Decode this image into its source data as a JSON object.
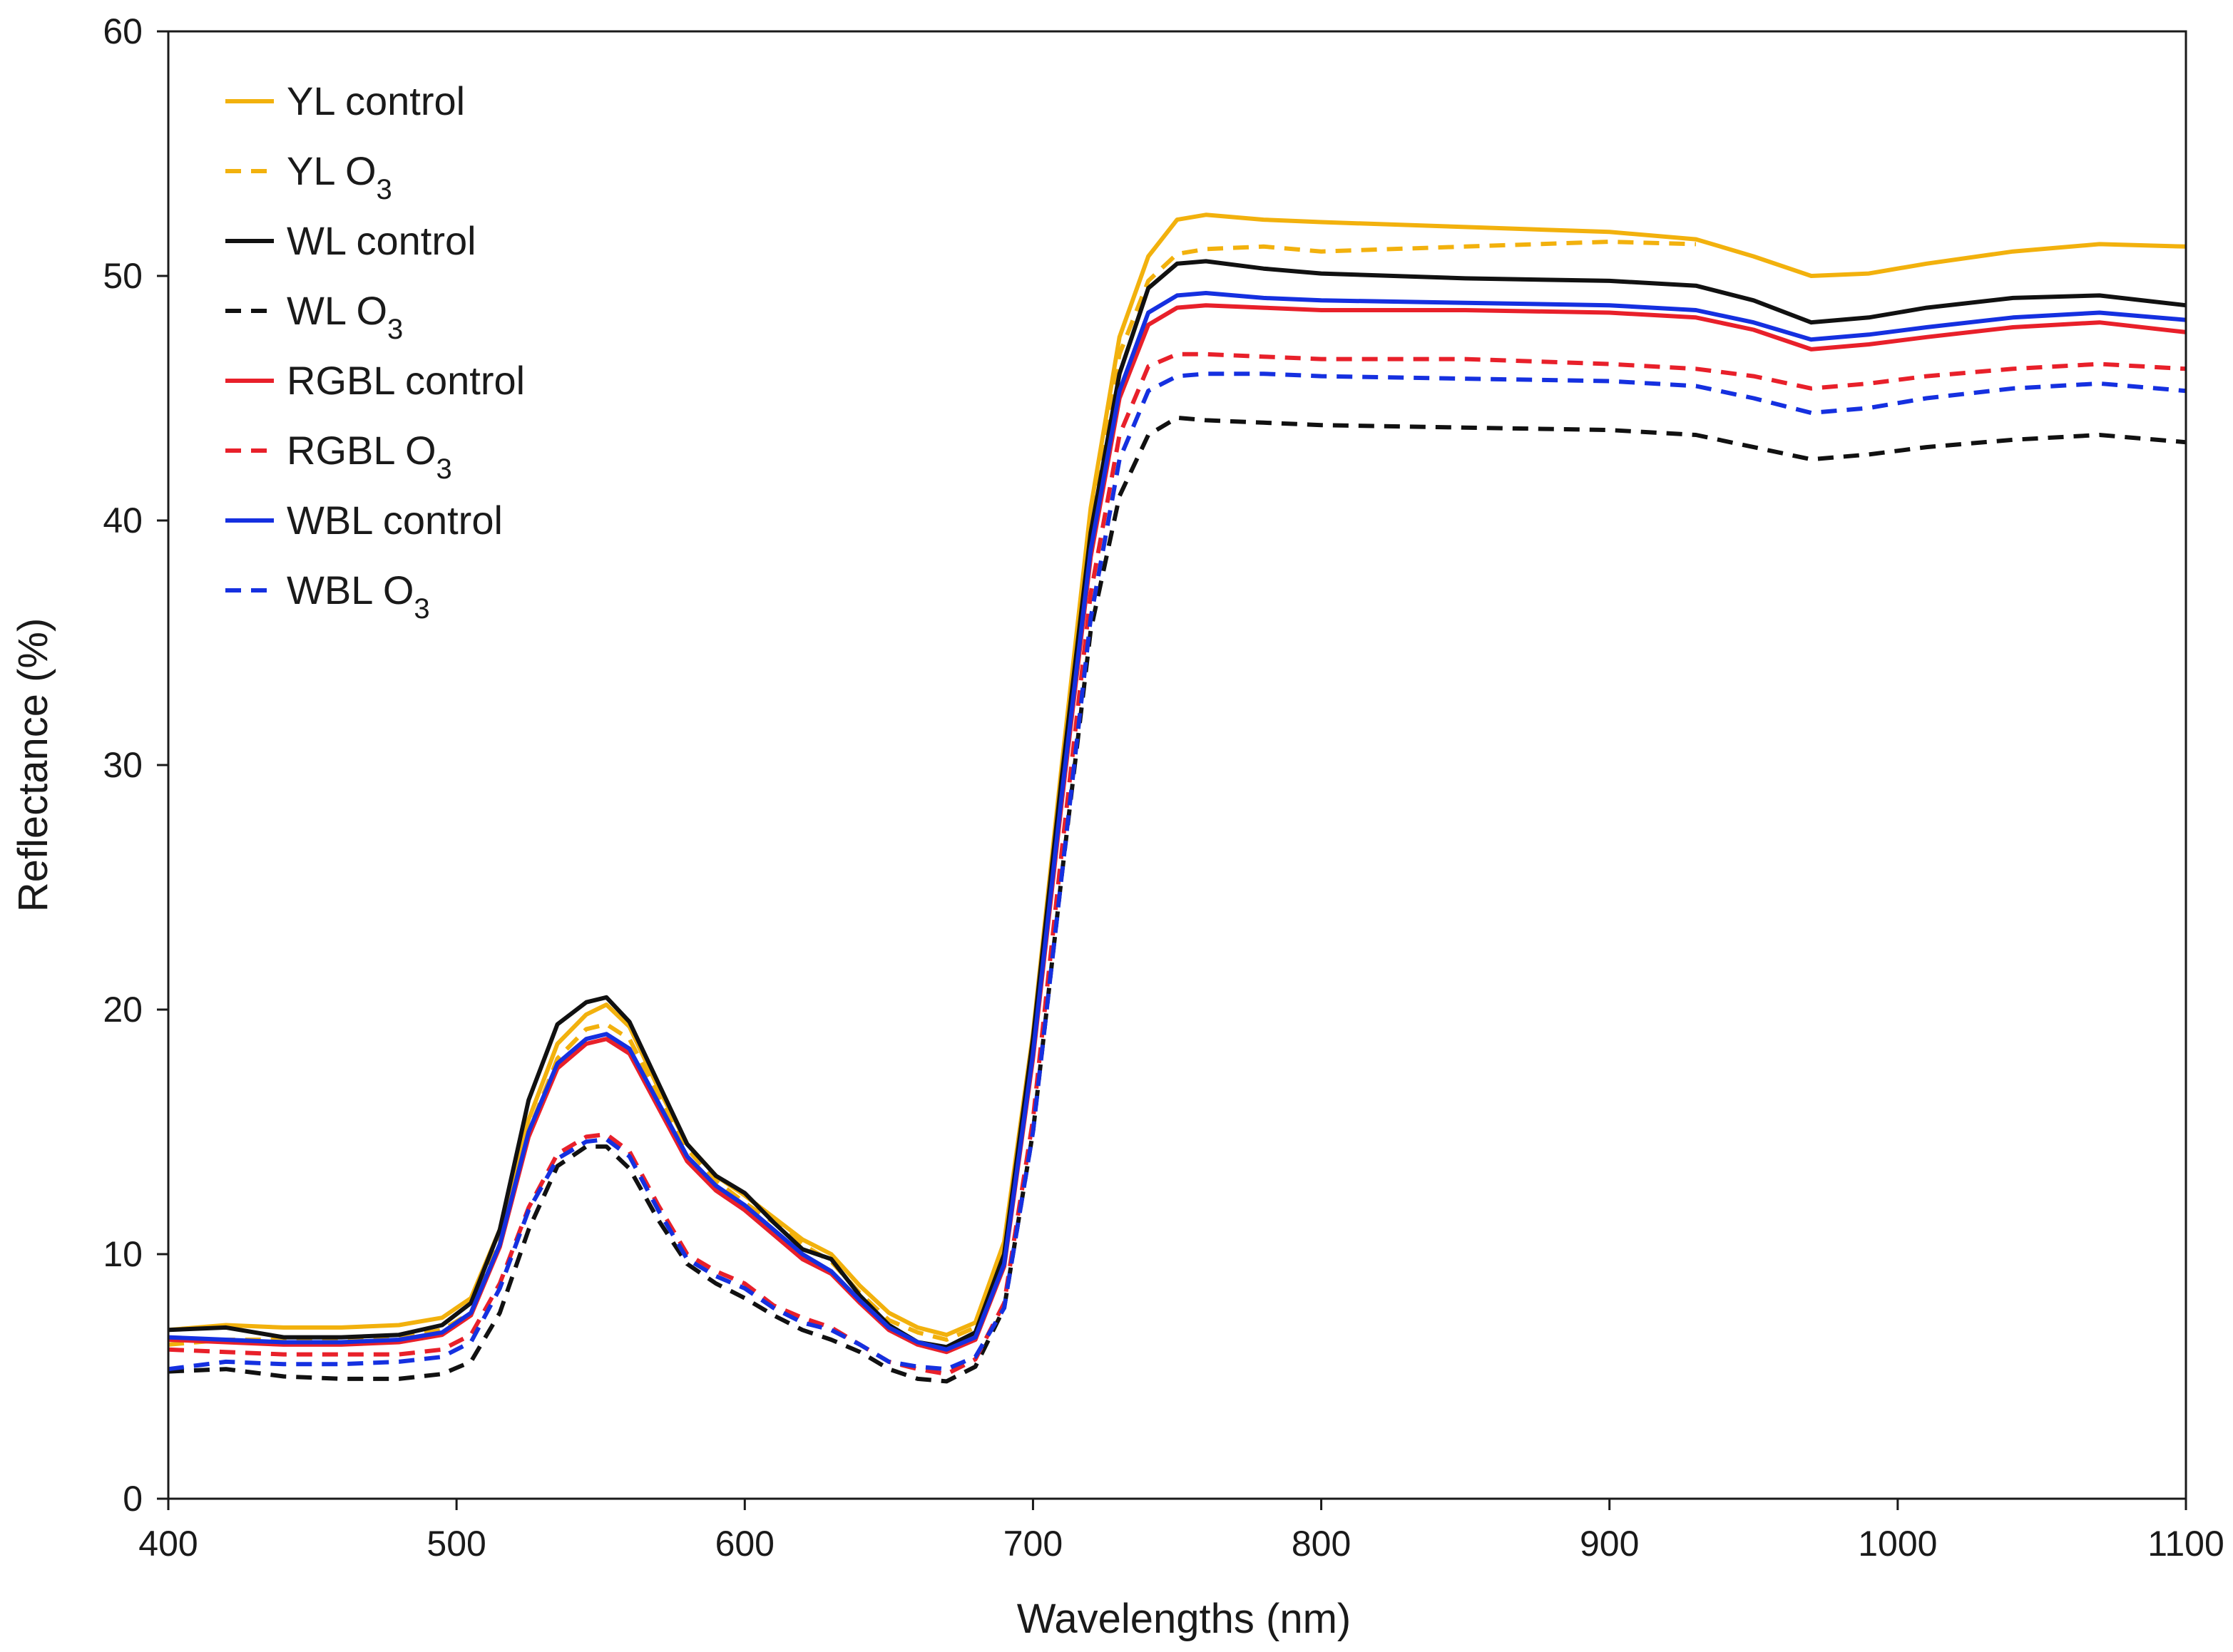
{
  "chart_data": {
    "type": "line",
    "title": "",
    "xlabel": "Wavelengths (nm)",
    "ylabel": "Reflectance (%)",
    "xlim": [
      400,
      1100
    ],
    "ylim": [
      0,
      60
    ],
    "xticks": [
      400,
      500,
      600,
      700,
      800,
      900,
      1000,
      1100
    ],
    "yticks": [
      0,
      10,
      20,
      30,
      40,
      50,
      60
    ],
    "xtick_labels": [
      "400",
      "500",
      "600",
      "700",
      "800",
      "900",
      "1000",
      "1100"
    ],
    "ytick_labels": [
      "0",
      "10",
      "20",
      "30",
      "40",
      "50",
      "60"
    ],
    "grid": false,
    "legend_position": "top-left",
    "x": [
      400,
      420,
      440,
      460,
      480,
      495,
      505,
      515,
      525,
      535,
      545,
      552,
      560,
      570,
      580,
      590,
      600,
      610,
      620,
      630,
      640,
      650,
      660,
      670,
      680,
      690,
      700,
      710,
      720,
      730,
      740,
      750,
      760,
      780,
      800,
      850,
      900,
      930,
      950,
      970,
      990,
      1010,
      1040,
      1070,
      1100
    ],
    "series": [
      {
        "name": "YL control",
        "label_main": "YL control",
        "label_sub": "",
        "color": "#F2B10D",
        "dash": "solid",
        "values": [
          6.9,
          7.1,
          7.0,
          7.0,
          7.1,
          7.4,
          8.2,
          11.0,
          15.5,
          18.6,
          19.8,
          20.2,
          19.3,
          16.8,
          14.5,
          13.2,
          12.4,
          11.5,
          10.6,
          10.0,
          8.7,
          7.6,
          7.0,
          6.7,
          7.2,
          10.5,
          19.0,
          30.0,
          40.5,
          47.5,
          50.8,
          52.3,
          52.5,
          52.3,
          52.2,
          52.0,
          51.8,
          51.5,
          50.8,
          50.0,
          50.1,
          50.5,
          51.0,
          51.3,
          51.2
        ]
      },
      {
        "name": "YL O3",
        "label_main": "YL O",
        "label_sub": "3",
        "color": "#F2B10D",
        "dash": "dashed",
        "values": [
          6.3,
          6.5,
          6.5,
          6.5,
          6.6,
          6.9,
          7.6,
          10.5,
          15.0,
          18.0,
          19.2,
          19.4,
          18.8,
          16.5,
          14.3,
          13.0,
          12.1,
          11.3,
          10.4,
          9.7,
          8.4,
          7.3,
          6.8,
          6.5,
          7.0,
          10.0,
          18.5,
          29.5,
          40.0,
          46.8,
          49.8,
          50.9,
          51.1,
          51.2,
          51.0,
          51.2,
          51.4,
          51.3,
          null,
          null,
          null,
          null,
          null,
          null,
          null
        ]
      },
      {
        "name": "WL control",
        "label_main": "WL control",
        "label_sub": "",
        "color": "#111111",
        "dash": "solid",
        "values": [
          6.9,
          7.0,
          6.6,
          6.6,
          6.7,
          7.1,
          8.0,
          11.0,
          16.3,
          19.4,
          20.3,
          20.5,
          19.5,
          17.0,
          14.5,
          13.2,
          12.5,
          11.3,
          10.2,
          9.8,
          8.3,
          7.1,
          6.4,
          6.2,
          6.8,
          10.0,
          18.8,
          29.5,
          39.5,
          46.0,
          49.5,
          50.5,
          50.6,
          50.3,
          50.1,
          49.9,
          49.8,
          49.6,
          49.0,
          48.1,
          48.3,
          48.7,
          49.1,
          49.2,
          48.8
        ]
      },
      {
        "name": "WL O3",
        "label_main": "WL O",
        "label_sub": "3",
        "color": "#111111",
        "dash": "dashed",
        "values": [
          5.2,
          5.3,
          5.0,
          4.9,
          4.9,
          5.1,
          5.6,
          7.6,
          11.0,
          13.6,
          14.4,
          14.4,
          13.5,
          11.4,
          9.6,
          8.8,
          8.2,
          7.5,
          6.9,
          6.5,
          6.0,
          5.3,
          4.9,
          4.8,
          5.4,
          7.8,
          15.0,
          25.5,
          35.5,
          41.0,
          43.5,
          44.2,
          44.1,
          44.0,
          43.9,
          43.8,
          43.7,
          43.5,
          43.0,
          42.5,
          42.7,
          43.0,
          43.3,
          43.5,
          43.2
        ]
      },
      {
        "name": "RGBL control",
        "label_main": "RGBL control",
        "label_sub": "",
        "color": "#E8202A",
        "dash": "solid",
        "values": [
          6.5,
          6.4,
          6.3,
          6.3,
          6.4,
          6.7,
          7.5,
          10.3,
          14.8,
          17.6,
          18.6,
          18.8,
          18.2,
          16.0,
          13.8,
          12.6,
          11.8,
          10.8,
          9.8,
          9.2,
          8.0,
          6.9,
          6.3,
          6.0,
          6.5,
          9.5,
          18.0,
          28.5,
          38.5,
          45.0,
          48.0,
          48.7,
          48.8,
          48.7,
          48.6,
          48.6,
          48.5,
          48.3,
          47.8,
          47.0,
          47.2,
          47.5,
          47.9,
          48.1,
          47.7
        ]
      },
      {
        "name": "RGBL O3",
        "label_main": "RGBL O",
        "label_sub": "3",
        "color": "#E8202A",
        "dash": "dashed",
        "values": [
          6.1,
          6.0,
          5.9,
          5.9,
          5.9,
          6.1,
          6.7,
          8.8,
          11.9,
          14.1,
          14.8,
          14.9,
          14.2,
          12.0,
          10.0,
          9.3,
          8.8,
          7.9,
          7.4,
          7.0,
          6.3,
          5.6,
          5.3,
          5.1,
          5.7,
          8.0,
          15.5,
          26.5,
          37.0,
          43.5,
          46.3,
          46.8,
          46.8,
          46.7,
          46.6,
          46.6,
          46.4,
          46.2,
          45.9,
          45.4,
          45.6,
          45.9,
          46.2,
          46.4,
          46.2
        ]
      },
      {
        "name": "WBL control",
        "label_main": "WBL control",
        "label_sub": "",
        "color": "#1530E0",
        "dash": "solid",
        "values": [
          6.6,
          6.5,
          6.4,
          6.4,
          6.5,
          6.8,
          7.6,
          10.4,
          15.0,
          17.8,
          18.8,
          19.0,
          18.4,
          16.2,
          14.0,
          12.8,
          12.0,
          11.0,
          10.0,
          9.3,
          8.1,
          7.0,
          6.4,
          6.1,
          6.6,
          9.6,
          18.2,
          28.8,
          38.8,
          45.3,
          48.5,
          49.2,
          49.3,
          49.1,
          49.0,
          48.9,
          48.8,
          48.6,
          48.1,
          47.4,
          47.6,
          47.9,
          48.3,
          48.5,
          48.2
        ]
      },
      {
        "name": "WBL O3",
        "label_main": "WBL O",
        "label_sub": "3",
        "color": "#1530E0",
        "dash": "dashed",
        "values": [
          5.3,
          5.6,
          5.5,
          5.5,
          5.6,
          5.8,
          6.4,
          8.6,
          11.8,
          13.9,
          14.6,
          14.7,
          14.0,
          11.8,
          9.8,
          9.1,
          8.6,
          7.8,
          7.2,
          6.9,
          6.3,
          5.6,
          5.4,
          5.3,
          5.8,
          7.8,
          15.0,
          25.5,
          36.0,
          42.5,
          45.3,
          45.9,
          46.0,
          46.0,
          45.9,
          45.8,
          45.7,
          45.5,
          45.0,
          44.4,
          44.6,
          45.0,
          45.4,
          45.6,
          45.3
        ]
      }
    ]
  }
}
